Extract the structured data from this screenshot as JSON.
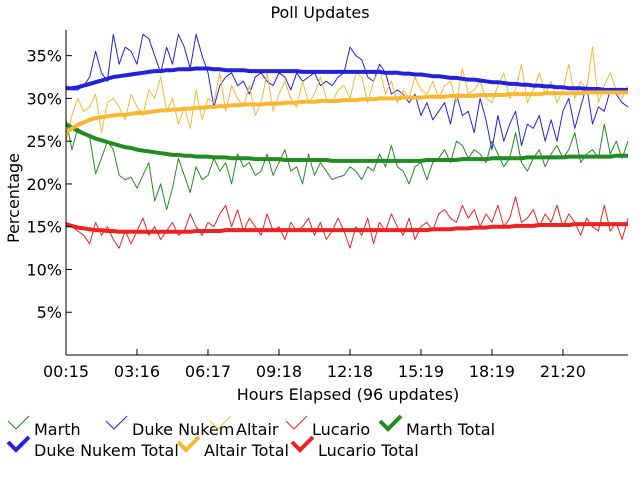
{
  "chart_data": {
    "type": "line",
    "title": "Poll Updates",
    "xlabel": "Hours Elapsed (96 updates)",
    "ylabel": "Percentage",
    "ylim": [
      0,
      38
    ],
    "y_ticks": [
      5,
      10,
      15,
      20,
      25,
      30,
      35
    ],
    "y_tick_labels": [
      "5%",
      "10%",
      "15%",
      "20%",
      "25%",
      "30%",
      "35%"
    ],
    "x_tick_labels": [
      "00:15",
      "03:16",
      "06:17",
      "09:18",
      "12:18",
      "15:19",
      "18:19",
      "21:20"
    ],
    "x_tick_indices": [
      0,
      12,
      24,
      36,
      48,
      60,
      72,
      84
    ],
    "n_updates": 96,
    "grid": false,
    "legend_position": "bottom",
    "series": [
      {
        "name": "Marth",
        "color": "#228B22",
        "style": "thin",
        "values": [
          27.5,
          24.0,
          26.5,
          26.0,
          25.5,
          21.2,
          23.0,
          25.0,
          24.0,
          21.0,
          20.5,
          20.8,
          19.5,
          21.0,
          22.5,
          18.0,
          20.0,
          17.0,
          19.5,
          23.0,
          21.0,
          19.0,
          22.0,
          20.5,
          21.0,
          23.0,
          21.5,
          22.5,
          20.0,
          23.5,
          22.0,
          22.5,
          21.0,
          21.5,
          23.5,
          21.0,
          22.5,
          24.0,
          21.5,
          22.0,
          20.0,
          23.5,
          21.0,
          22.5,
          21.5,
          20.5,
          20.8,
          21.0,
          22.0,
          21.5,
          20.5,
          22.0,
          21.5,
          23.5,
          22.0,
          24.5,
          22.0,
          21.5,
          20.0,
          22.0,
          22.5,
          20.5,
          22.5,
          23.0,
          24.0,
          22.5,
          25.0,
          24.5,
          23.0,
          24.0,
          23.5,
          22.5,
          25.0,
          23.5,
          22.0,
          23.0,
          26.0,
          22.5,
          21.5,
          23.0,
          24.0,
          22.0,
          23.5,
          24.5,
          23.0,
          24.0,
          26.0,
          22.5,
          23.5,
          24.0,
          23.0,
          27.0,
          23.5,
          25.0,
          23.0,
          25.0
        ]
      },
      {
        "name": "Duke Nukem",
        "color": "#2222DD",
        "style": "thin",
        "values": [
          31.5,
          31.0,
          31.0,
          31.5,
          32.5,
          35.5,
          33.0,
          32.0,
          37.5,
          34.0,
          36.0,
          35.5,
          34.0,
          37.5,
          37.0,
          35.0,
          33.0,
          36.0,
          34.0,
          37.5,
          36.0,
          33.5,
          37.5,
          35.0,
          33.0,
          29.0,
          31.5,
          32.5,
          33.0,
          31.5,
          32.0,
          30.5,
          32.5,
          33.0,
          32.0,
          31.5,
          33.0,
          32.5,
          31.0,
          33.0,
          32.0,
          32.5,
          33.0,
          31.5,
          32.0,
          31.5,
          32.5,
          33.0,
          36.0,
          35.0,
          34.5,
          32.5,
          32.0,
          34.0,
          33.0,
          30.5,
          31.0,
          30.5,
          29.5,
          30.5,
          28.0,
          29.5,
          27.5,
          28.5,
          29.5,
          27.0,
          30.5,
          28.0,
          28.5,
          26.0,
          30.0,
          27.5,
          24.0,
          28.0,
          25.0,
          27.0,
          28.5,
          24.5,
          27.0,
          26.5,
          28.0,
          25.0,
          27.5,
          25.0,
          28.5,
          30.0,
          26.5,
          29.0,
          31.5,
          27.0,
          29.0,
          28.5,
          31.0,
          30.5,
          29.5,
          29.0
        ]
      },
      {
        "name": "Altair",
        "color": "#F7B733",
        "style": "thin",
        "values": [
          25.0,
          28.0,
          30.0,
          28.5,
          29.0,
          30.5,
          26.0,
          29.5,
          30.0,
          29.0,
          27.5,
          30.5,
          29.0,
          28.0,
          31.0,
          30.0,
          32.5,
          28.5,
          30.0,
          27.0,
          29.0,
          26.5,
          31.0,
          27.5,
          30.0,
          29.5,
          33.0,
          28.5,
          31.5,
          30.0,
          29.0,
          31.5,
          28.0,
          29.5,
          33.0,
          28.5,
          30.5,
          32.0,
          30.0,
          29.0,
          32.0,
          29.5,
          30.5,
          32.5,
          30.0,
          29.5,
          31.0,
          31.5,
          30.0,
          33.0,
          32.5,
          29.5,
          32.0,
          33.5,
          30.5,
          32.0,
          29.5,
          31.0,
          30.0,
          32.5,
          31.0,
          30.5,
          32.0,
          30.0,
          31.5,
          32.0,
          29.5,
          33.5,
          30.5,
          31.0,
          32.0,
          30.0,
          29.5,
          31.5,
          33.0,
          30.0,
          31.0,
          34.0,
          29.5,
          31.0,
          33.0,
          30.5,
          32.0,
          29.5,
          31.0,
          34.0,
          30.0,
          32.0,
          31.0,
          36.0,
          29.5,
          31.5,
          33.0,
          31.0,
          30.0,
          31.5
        ]
      },
      {
        "name": "Lucario",
        "color": "#EE2222",
        "style": "thin",
        "values": [
          15.5,
          15.0,
          14.5,
          14.0,
          13.0,
          15.5,
          14.0,
          15.0,
          13.5,
          12.5,
          14.5,
          13.0,
          14.5,
          16.0,
          14.0,
          15.0,
          13.5,
          14.5,
          15.5,
          14.0,
          14.5,
          16.5,
          15.0,
          14.0,
          15.5,
          15.0,
          16.5,
          17.5,
          15.0,
          17.0,
          14.5,
          16.0,
          15.0,
          14.0,
          16.5,
          14.5,
          15.0,
          13.5,
          15.5,
          14.5,
          15.0,
          16.0,
          14.0,
          15.5,
          13.5,
          14.5,
          16.0,
          14.5,
          12.5,
          15.0,
          14.0,
          16.0,
          13.0,
          15.5,
          14.5,
          16.5,
          15.0,
          14.0,
          16.0,
          13.5,
          15.0,
          15.5,
          14.5,
          16.5,
          17.0,
          16.0,
          15.5,
          17.5,
          16.0,
          17.0,
          15.0,
          16.5,
          15.5,
          17.5,
          15.0,
          16.0,
          18.5,
          15.5,
          16.0,
          17.0,
          15.0,
          16.5,
          15.5,
          17.5,
          15.0,
          16.5,
          15.5,
          14.0,
          16.0,
          15.0,
          14.5,
          17.5,
          14.5,
          15.5,
          13.5,
          16.0
        ]
      },
      {
        "name": "Marth Total",
        "color": "#228B22",
        "style": "thick",
        "values": [
          27.0,
          26.6,
          26.2,
          25.9,
          25.6,
          25.3,
          25.1,
          24.9,
          24.7,
          24.5,
          24.3,
          24.2,
          24.0,
          23.9,
          23.8,
          23.7,
          23.6,
          23.5,
          23.4,
          23.4,
          23.3,
          23.3,
          23.2,
          23.2,
          23.2,
          23.1,
          23.1,
          23.1,
          23.0,
          23.0,
          23.0,
          23.0,
          22.9,
          22.9,
          22.9,
          22.9,
          22.9,
          22.8,
          22.8,
          22.8,
          22.8,
          22.8,
          22.8,
          22.8,
          22.8,
          22.7,
          22.7,
          22.7,
          22.7,
          22.7,
          22.7,
          22.7,
          22.7,
          22.7,
          22.7,
          22.7,
          22.7,
          22.7,
          22.7,
          22.7,
          22.7,
          22.8,
          22.8,
          22.8,
          22.8,
          22.8,
          22.8,
          22.9,
          22.9,
          22.9,
          22.9,
          22.9,
          23.0,
          23.0,
          23.0,
          23.0,
          23.0,
          23.0,
          23.1,
          23.1,
          23.1,
          23.1,
          23.1,
          23.1,
          23.1,
          23.2,
          23.2,
          23.2,
          23.2,
          23.2,
          23.2,
          23.2,
          23.2,
          23.3,
          23.3,
          23.3
        ]
      },
      {
        "name": "Duke Nukem Total",
        "color": "#2222DD",
        "style": "thick",
        "values": [
          31.2,
          31.2,
          31.3,
          31.5,
          31.7,
          31.9,
          32.1,
          32.3,
          32.5,
          32.6,
          32.7,
          32.8,
          32.9,
          33.0,
          33.1,
          33.2,
          33.2,
          33.3,
          33.3,
          33.4,
          33.4,
          33.4,
          33.5,
          33.5,
          33.5,
          33.4,
          33.4,
          33.3,
          33.3,
          33.3,
          33.3,
          33.2,
          33.2,
          33.2,
          33.2,
          33.2,
          33.2,
          33.2,
          33.2,
          33.2,
          33.1,
          33.1,
          33.1,
          33.1,
          33.1,
          33.1,
          33.1,
          33.1,
          33.1,
          33.1,
          33.1,
          33.1,
          33.1,
          33.1,
          33.0,
          33.0,
          33.0,
          32.9,
          32.9,
          32.8,
          32.8,
          32.7,
          32.6,
          32.6,
          32.5,
          32.4,
          32.4,
          32.3,
          32.2,
          32.2,
          32.1,
          32.0,
          31.9,
          31.9,
          31.8,
          31.7,
          31.7,
          31.6,
          31.6,
          31.5,
          31.5,
          31.4,
          31.4,
          31.3,
          31.3,
          31.2,
          31.2,
          31.2,
          31.1,
          31.1,
          31.1,
          31.0,
          31.0,
          31.0,
          31.0,
          31.0
        ]
      },
      {
        "name": "Altair Total",
        "color": "#F7B733",
        "style": "thick",
        "values": [
          26.0,
          26.5,
          26.9,
          27.2,
          27.5,
          27.7,
          27.8,
          27.9,
          28.0,
          28.1,
          28.1,
          28.2,
          28.3,
          28.3,
          28.4,
          28.5,
          28.6,
          28.6,
          28.7,
          28.7,
          28.8,
          28.8,
          28.9,
          28.9,
          29.0,
          29.0,
          29.1,
          29.1,
          29.2,
          29.2,
          29.3,
          29.3,
          29.3,
          29.3,
          29.4,
          29.4,
          29.4,
          29.5,
          29.5,
          29.5,
          29.6,
          29.6,
          29.6,
          29.7,
          29.7,
          29.7,
          29.7,
          29.8,
          29.8,
          29.8,
          29.9,
          29.9,
          29.9,
          30.0,
          30.0,
          30.0,
          30.0,
          30.1,
          30.1,
          30.1,
          30.1,
          30.2,
          30.2,
          30.2,
          30.2,
          30.3,
          30.3,
          30.3,
          30.3,
          30.3,
          30.4,
          30.4,
          30.4,
          30.4,
          30.4,
          30.5,
          30.5,
          30.5,
          30.5,
          30.5,
          30.5,
          30.6,
          30.6,
          30.6,
          30.6,
          30.6,
          30.6,
          30.6,
          30.7,
          30.7,
          30.7,
          30.7,
          30.7,
          30.7,
          30.7,
          30.7
        ]
      },
      {
        "name": "Lucario Total",
        "color": "#EE2222",
        "style": "thick",
        "values": [
          15.3,
          15.1,
          14.9,
          14.8,
          14.7,
          14.6,
          14.6,
          14.5,
          14.5,
          14.4,
          14.4,
          14.4,
          14.4,
          14.4,
          14.4,
          14.4,
          14.4,
          14.4,
          14.4,
          14.4,
          14.4,
          14.4,
          14.5,
          14.5,
          14.5,
          14.5,
          14.5,
          14.6,
          14.6,
          14.6,
          14.6,
          14.6,
          14.6,
          14.6,
          14.6,
          14.6,
          14.6,
          14.6,
          14.6,
          14.6,
          14.6,
          14.6,
          14.6,
          14.6,
          14.6,
          14.6,
          14.6,
          14.6,
          14.6,
          14.6,
          14.6,
          14.6,
          14.6,
          14.6,
          14.6,
          14.6,
          14.6,
          14.6,
          14.6,
          14.6,
          14.6,
          14.6,
          14.7,
          14.7,
          14.7,
          14.7,
          14.8,
          14.8,
          14.8,
          14.9,
          14.9,
          14.9,
          15.0,
          15.0,
          15.0,
          15.0,
          15.1,
          15.1,
          15.1,
          15.1,
          15.2,
          15.2,
          15.2,
          15.2,
          15.2,
          15.2,
          15.3,
          15.3,
          15.3,
          15.3,
          15.3,
          15.3,
          15.3,
          15.3,
          15.3,
          15.3
        ]
      }
    ]
  }
}
